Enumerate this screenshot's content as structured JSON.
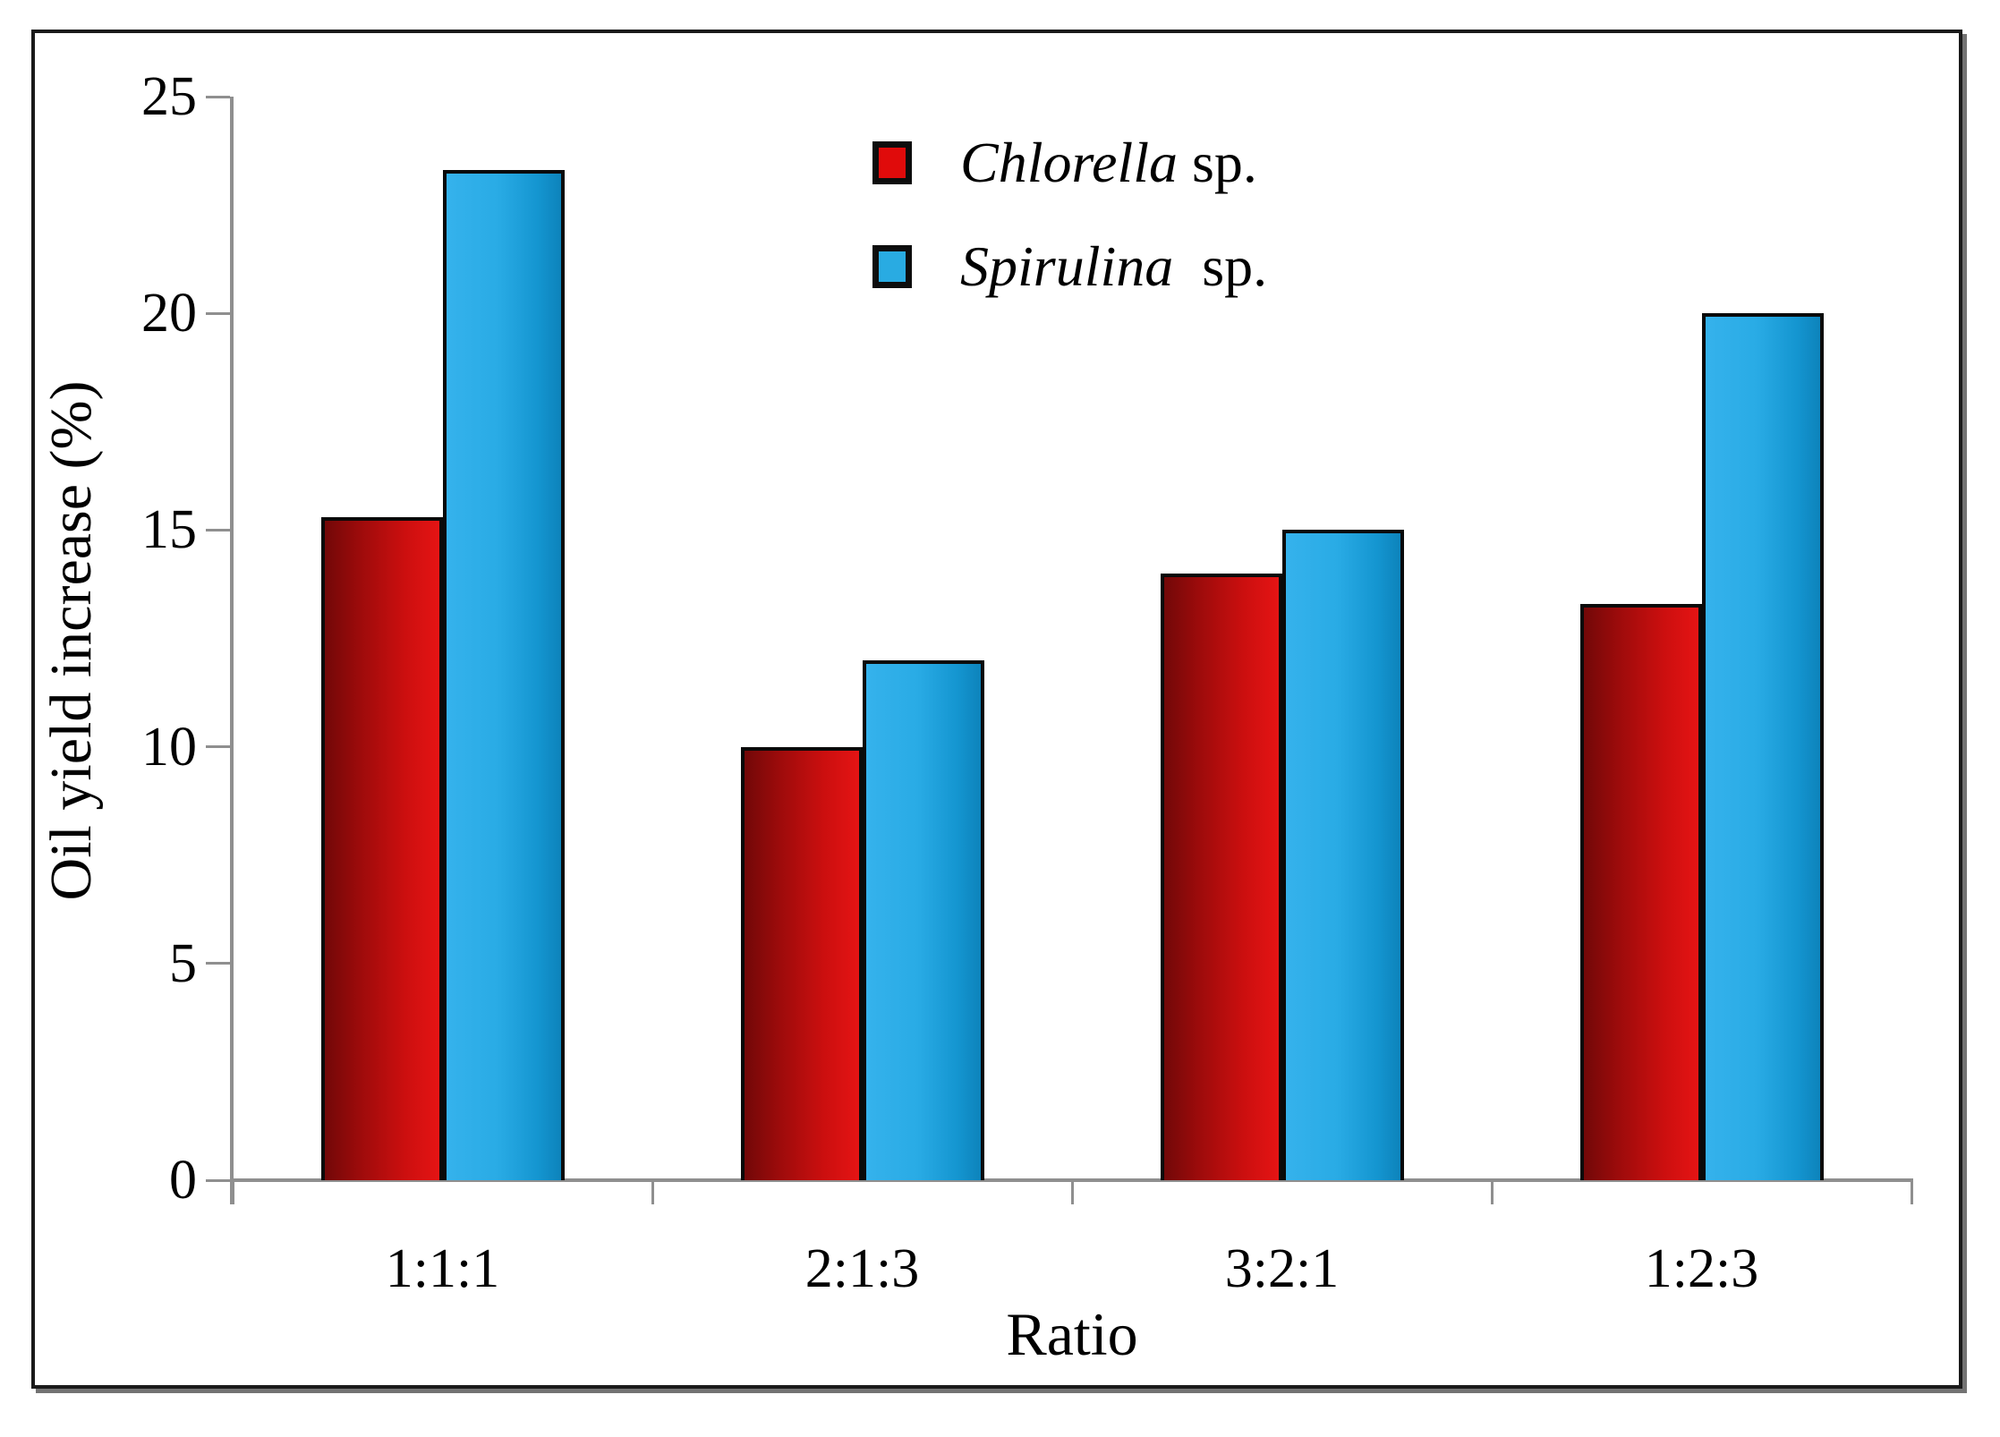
{
  "chart_data": {
    "type": "bar",
    "title": "",
    "categories": [
      "1:1:1",
      "2:1:3",
      "3:2:1",
      "1:2:3"
    ],
    "series": [
      {
        "name": "Chlorella sp.",
        "color": "#dd0f0f",
        "values": [
          15.3,
          10,
          14,
          13.3
        ]
      },
      {
        "name": "Spirulina sp.",
        "color": "#29abe2",
        "values": [
          23.3,
          12,
          15,
          20
        ]
      }
    ],
    "xlabel": "Ratio",
    "ylabel": "Oil yield increase (%)",
    "ylim": [
      0,
      25
    ],
    "yticks": [
      0,
      5,
      10,
      15,
      20,
      25
    ],
    "grid": "off",
    "legend_position": "inside-top-center",
    "bar_border_color": "#0a0a0a",
    "axis_color": "#8f8f8f"
  },
  "legend": {
    "items": [
      {
        "genus": "Chlorella",
        "suffix": " sp."
      },
      {
        "genus": "Spirulina",
        "suffix": "  sp."
      }
    ]
  }
}
